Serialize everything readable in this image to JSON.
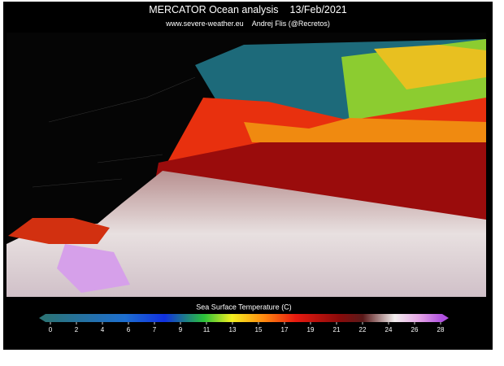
{
  "header": {
    "title": "MERCATOR Ocean analysis",
    "date": "13/Feb/2021",
    "site": "www.severe-weather.eu",
    "author": "Andrej Flis (@Recretos)"
  },
  "colorbar": {
    "label": "Sea Surface Temperature (C)",
    "ticks": [
      0,
      2,
      4,
      6,
      7,
      9,
      11,
      13,
      15,
      17,
      19,
      21,
      22,
      24,
      26,
      28
    ]
  }
}
